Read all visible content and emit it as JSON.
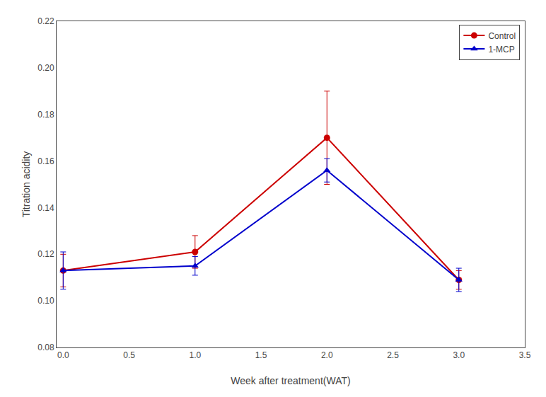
{
  "chart_data": {
    "type": "line",
    "x": [
      0.0,
      1.0,
      2.0,
      3.0
    ],
    "series": [
      {
        "name": "Control",
        "color": "#cc0000",
        "marker": "circle",
        "line_style": "solid",
        "values": [
          0.113,
          0.121,
          0.17,
          0.109
        ],
        "errors": [
          0.007,
          0.007,
          0.02,
          0.004
        ]
      },
      {
        "name": "1-MCP",
        "color": "#0000cc",
        "marker": "triangle-up",
        "line_style": "solid",
        "values": [
          0.113,
          0.115,
          0.156,
          0.109
        ],
        "errors": [
          0.008,
          0.004,
          0.005,
          0.005
        ]
      }
    ],
    "x_label": "Week after treatment(WAT)",
    "y_label": "Titration acidity",
    "xlim": [
      -0.05,
      3.5
    ],
    "ylim": [
      0.08,
      0.22
    ],
    "xticks": [
      {
        "value": 0.0,
        "label": "0.0"
      },
      0.5,
      {
        "value": 1.0,
        "label": "1.0"
      },
      1.5,
      {
        "value": 2.0,
        "label": "2.0"
      },
      2.5,
      {
        "value": 3.0,
        "label": "3.0"
      },
      3.5
    ],
    "yticks": [
      0.08,
      {
        "value": 0.1,
        "label": "0.10"
      },
      0.12,
      0.14,
      0.16,
      0.18,
      {
        "value": 0.2,
        "label": "0.20"
      },
      0.22
    ],
    "grid": false,
    "legend": "upper right"
  }
}
